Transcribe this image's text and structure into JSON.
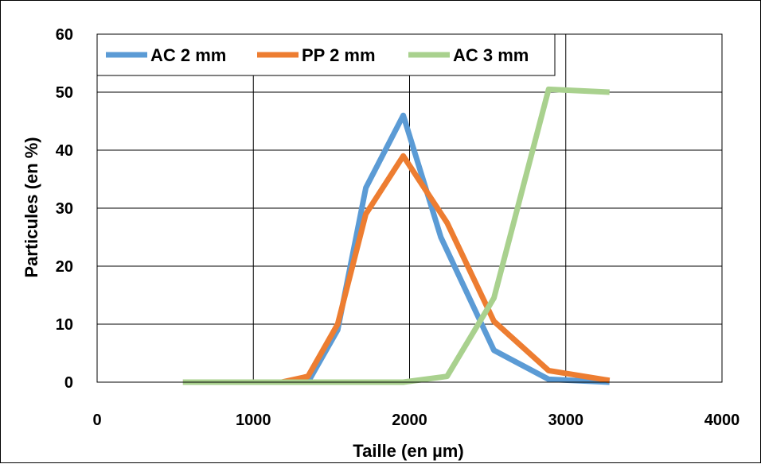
{
  "chart_data": {
    "type": "line",
    "title": "",
    "xlabel": "Taille (en µm)",
    "ylabel": "Particules (en %)",
    "xlim": [
      0,
      4000
    ],
    "ylim": [
      0,
      60
    ],
    "xticks": [
      0,
      1000,
      2000,
      3000,
      4000
    ],
    "yticks": [
      0,
      10,
      20,
      30,
      40,
      50,
      60
    ],
    "x_tick_labels": [
      "0",
      "1000",
      "2000",
      "3000",
      "4000"
    ],
    "y_tick_labels": [
      "0",
      "10",
      "20",
      "30",
      "40",
      "50",
      "60"
    ],
    "grid": true,
    "legend_position": "top-left",
    "series": [
      {
        "name": "AC 2 mm",
        "color": "#5B9BD5",
        "points": [
          [
            550,
            0
          ],
          [
            1180,
            0
          ],
          [
            1350,
            0
          ],
          [
            1540,
            9
          ],
          [
            1720,
            33.5
          ],
          [
            1960,
            46
          ],
          [
            2200,
            25
          ],
          [
            2540,
            5.5
          ],
          [
            2890,
            0.5
          ],
          [
            3280,
            0
          ]
        ]
      },
      {
        "name": "PP 2 mm",
        "color": "#ED7D31",
        "points": [
          [
            550,
            0
          ],
          [
            1180,
            0
          ],
          [
            1350,
            1
          ],
          [
            1540,
            10
          ],
          [
            1720,
            29
          ],
          [
            1960,
            39
          ],
          [
            2240,
            27.5
          ],
          [
            2540,
            10.5
          ],
          [
            2890,
            2
          ],
          [
            3280,
            0.3
          ]
        ]
      },
      {
        "name": "AC 3 mm",
        "color": "#A9D18E",
        "points": [
          [
            550,
            0
          ],
          [
            1180,
            0
          ],
          [
            1350,
            0
          ],
          [
            1720,
            0
          ],
          [
            1960,
            0
          ],
          [
            2240,
            1
          ],
          [
            2540,
            14.5
          ],
          [
            2890,
            50.5
          ],
          [
            3280,
            50
          ]
        ]
      }
    ]
  }
}
